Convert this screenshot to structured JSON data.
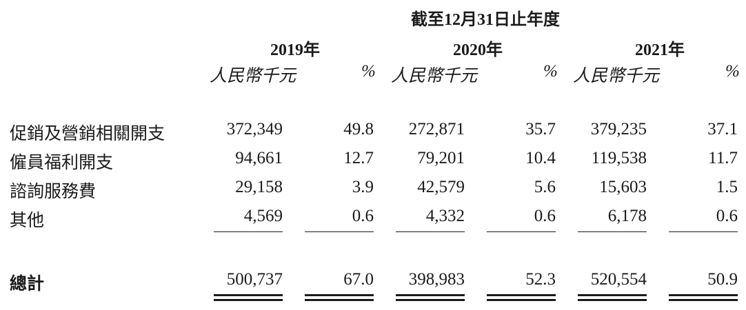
{
  "header": {
    "period": "截至12月31日止年度",
    "years": [
      "2019年",
      "2020年",
      "2021年"
    ],
    "unit_label": "人民幣千元",
    "pct_label": "%"
  },
  "rows": [
    {
      "label": "促銷及營銷相關開支",
      "values": [
        "372,349",
        "49.8",
        "272,871",
        "35.7",
        "379,235",
        "37.1"
      ]
    },
    {
      "label": "僱員福利開支",
      "values": [
        "94,661",
        "12.7",
        "79,201",
        "10.4",
        "119,538",
        "11.7"
      ]
    },
    {
      "label": "諮詢服務費",
      "values": [
        "29,158",
        "3.9",
        "42,579",
        "5.6",
        "15,603",
        "1.5"
      ]
    },
    {
      "label": "其他",
      "values": [
        "4,569",
        "0.6",
        "4,332",
        "0.6",
        "6,178",
        "0.6"
      ]
    }
  ],
  "total": {
    "label": "總計",
    "values": [
      "500,737",
      "67.0",
      "398,983",
      "52.3",
      "520,554",
      "50.9"
    ]
  }
}
